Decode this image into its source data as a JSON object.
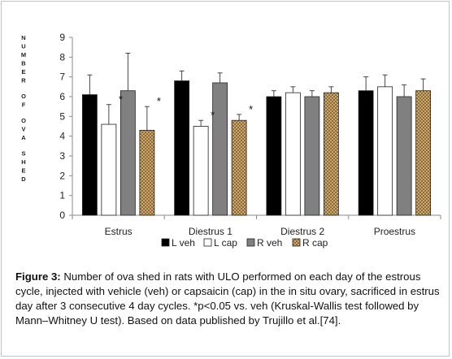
{
  "chart_data": {
    "type": "bar",
    "ylabel": "NUMBER OF OVA SHED",
    "xlabel": "",
    "ylim": [
      0,
      9
    ],
    "yticks": [
      "0",
      "1",
      "2",
      "3",
      "4",
      "5",
      "6",
      "7",
      "8",
      "9"
    ],
    "categories": [
      "Estrus",
      "Diestrus 1",
      "Diestrus 2",
      "Proestrus"
    ],
    "series": [
      {
        "name": "L veh",
        "color": "#000000",
        "pattern": "solid",
        "values": [
          6.1,
          6.8,
          6.0,
          6.3
        ],
        "error": [
          1.0,
          0.5,
          0.3,
          0.7
        ]
      },
      {
        "name": "L cap",
        "color": "#ffffff",
        "pattern": "solid",
        "values": [
          4.6,
          4.5,
          6.2,
          6.5
        ],
        "error": [
          1.0,
          0.3,
          0.3,
          0.6
        ]
      },
      {
        "name": "R veh",
        "color": "#808080",
        "pattern": "solid",
        "values": [
          6.3,
          6.7,
          6.0,
          6.0
        ],
        "error": [
          1.9,
          0.5,
          0.3,
          0.6
        ]
      },
      {
        "name": "R cap",
        "color": "#b8965c",
        "pattern": "checker",
        "values": [
          4.3,
          4.8,
          6.2,
          6.3
        ],
        "error": [
          1.2,
          0.3,
          0.3,
          0.6
        ]
      }
    ],
    "annotations": [
      {
        "text": "*",
        "category": 0,
        "series": 1
      },
      {
        "text": "*",
        "category": 0,
        "series": 3
      },
      {
        "text": "*",
        "category": 1,
        "series": 1
      },
      {
        "text": "*",
        "category": 1,
        "series": 3
      }
    ],
    "legend_position": "bottom",
    "grid": false
  },
  "caption": {
    "label": "Figure 3:",
    "text": " Number of ova shed in rats with ULO performed on each day of the estrous cycle, injected with vehicle (veh) or capsaicin (cap) in the in situ ovary, sacrificed in estrus day after 3 consecutive 4 day cycles. *p<0.05 vs. veh (Kruskal-Wallis test followed by Mann–Whitney U test). Based on data published by Trujillo et al.[74]."
  }
}
